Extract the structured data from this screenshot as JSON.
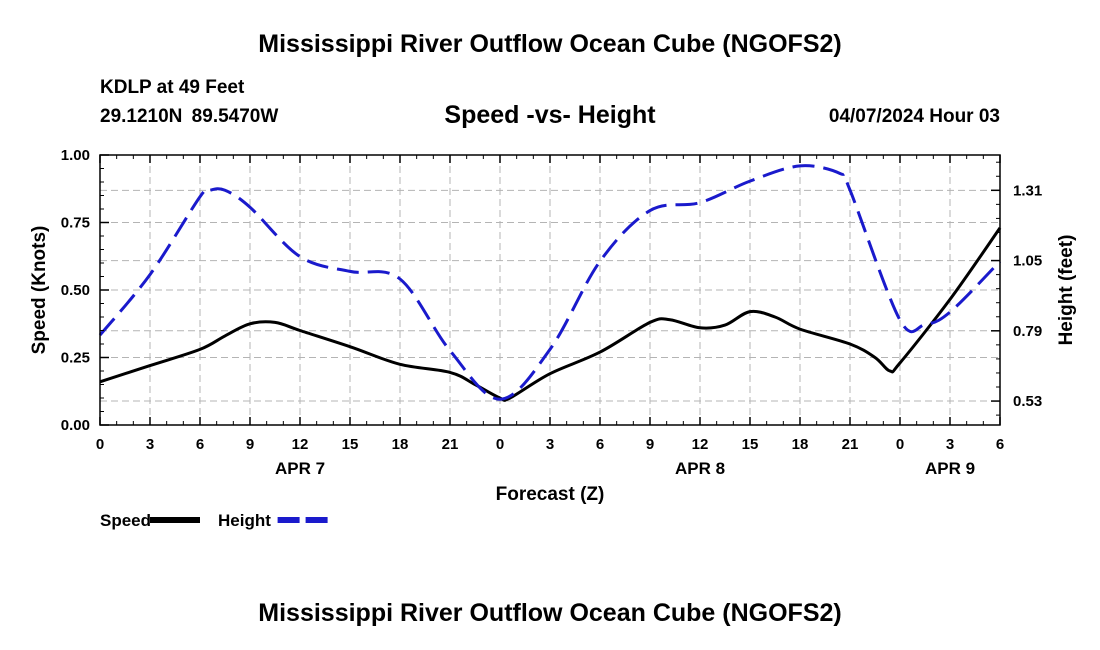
{
  "header": {
    "title": "Mississippi River Outflow Ocean Cube (NGOFS2)",
    "station": "KDLP at 49 Feet",
    "coordinates": "29.1210N 89.5470W",
    "subtitle": "Speed -vs- Height",
    "datetime": "04/07/2024 Hour 03"
  },
  "footer": {
    "title": "Mississippi River Outflow Ocean Cube (NGOFS2)"
  },
  "chart_data": {
    "type": "line",
    "title": "Speed -vs- Height",
    "xlabel": "Forecast (Z)",
    "ylabel": "Speed (Knots)",
    "y2label": "Height (feet)",
    "grid": true,
    "x_unit": "hours from APR 7 00Z",
    "xlim": [
      0,
      54
    ],
    "ylim": [
      0,
      1.0
    ],
    "y2lim": [
      0.4414,
      1.4407
    ],
    "x_ticks": [
      0,
      3,
      6,
      9,
      12,
      15,
      18,
      21,
      24,
      27,
      30,
      33,
      36,
      39,
      42,
      45,
      48,
      51,
      54
    ],
    "x_tick_labels": [
      "0",
      "3",
      "6",
      "9",
      "12",
      "15",
      "18",
      "21",
      "0",
      "3",
      "6",
      "9",
      "12",
      "15",
      "18",
      "21",
      "0",
      "3",
      "6"
    ],
    "day_labels": [
      {
        "x": 12,
        "label": "APR 7"
      },
      {
        "x": 36,
        "label": "APR 8"
      },
      {
        "x": 51,
        "label": "APR 9"
      }
    ],
    "y_ticks": [
      0.0,
      0.25,
      0.5,
      0.75,
      1.0
    ],
    "y_tick_labels": [
      "0.00",
      "0.25",
      "0.50",
      "0.75",
      "1.00"
    ],
    "y2_ticks": [
      0.53,
      0.79,
      1.05,
      1.31
    ],
    "y2_tick_labels": [
      "0.53",
      "0.79",
      "1.05",
      "1.31"
    ],
    "series": [
      {
        "name": "Speed",
        "axis": "left",
        "color": "#000000",
        "style": "solid",
        "x": [
          0,
          3,
          6,
          7.5,
          9,
          10.5,
          12,
          15,
          18,
          21,
          22.5,
          24,
          24.6,
          27,
          30,
          33,
          34.2,
          36,
          37.5,
          39,
          40.5,
          42,
          45,
          46.5,
          47.4,
          48,
          51,
          54
        ],
        "y": [
          0.16,
          0.22,
          0.28,
          0.33,
          0.375,
          0.38,
          0.35,
          0.29,
          0.225,
          0.195,
          0.15,
          0.1,
          0.1,
          0.19,
          0.27,
          0.38,
          0.39,
          0.36,
          0.37,
          0.42,
          0.4,
          0.355,
          0.3,
          0.25,
          0.2,
          0.23,
          0.465,
          0.73
        ]
      },
      {
        "name": "Height",
        "axis": "right",
        "color": "#1a1acc",
        "style": "dashed",
        "x": [
          0,
          3,
          6,
          6.6,
          7.5,
          9,
          12,
          15,
          18,
          21,
          24,
          27,
          30,
          33,
          36,
          39,
          42,
          44.4,
          45,
          48,
          49.5,
          51,
          54
        ],
        "y": [
          0.7741,
          0.9982,
          1.2863,
          1.31,
          1.31,
          1.2474,
          1.0647,
          1.0099,
          0.9816,
          0.7169,
          0.5368,
          0.7212,
          1.0473,
          1.235,
          1.2645,
          1.3441,
          1.4004,
          1.3724,
          1.3108,
          0.8296,
          0.8135,
          0.8592,
          1.0473
        ]
      }
    ],
    "legend": {
      "placement": "bottom-left",
      "items": [
        "Speed",
        "Height"
      ]
    }
  }
}
